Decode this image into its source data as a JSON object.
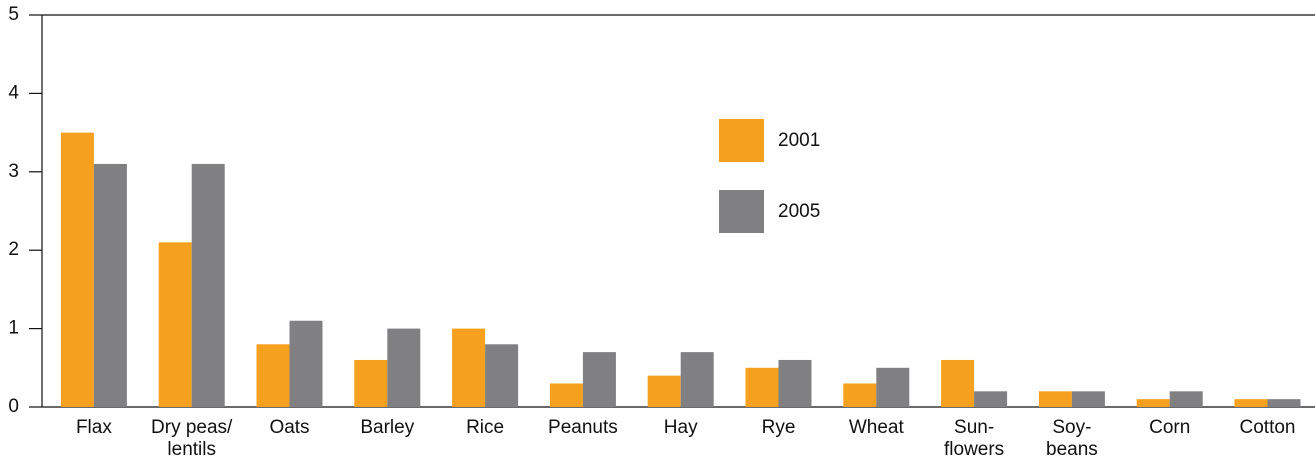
{
  "chart_data": {
    "type": "bar",
    "categories": [
      [
        "Flax"
      ],
      [
        "Dry peas/",
        "lentils"
      ],
      [
        "Oats"
      ],
      [
        "Barley"
      ],
      [
        "Rice"
      ],
      [
        "Peanuts"
      ],
      [
        "Hay"
      ],
      [
        "Rye"
      ],
      [
        "Wheat"
      ],
      [
        "Sun-",
        "flowers"
      ],
      [
        "Soy-",
        "beans"
      ],
      [
        "Corn"
      ],
      [
        "Cotton"
      ]
    ],
    "series": [
      {
        "name": "2001",
        "color": "#f5a01f",
        "values": [
          3.5,
          2.1,
          0.8,
          0.6,
          1.0,
          0.3,
          0.4,
          0.5,
          0.3,
          0.6,
          0.2,
          0.1,
          0.1
        ]
      },
      {
        "name": "2005",
        "color": "#808083",
        "values": [
          3.1,
          3.1,
          1.1,
          1.0,
          0.8,
          0.7,
          0.7,
          0.6,
          0.5,
          0.2,
          0.2,
          0.2,
          0.1
        ]
      }
    ],
    "ylim": [
      0,
      5
    ],
    "yticks": [
      0,
      1,
      2,
      3,
      4,
      5
    ],
    "grid": false
  }
}
